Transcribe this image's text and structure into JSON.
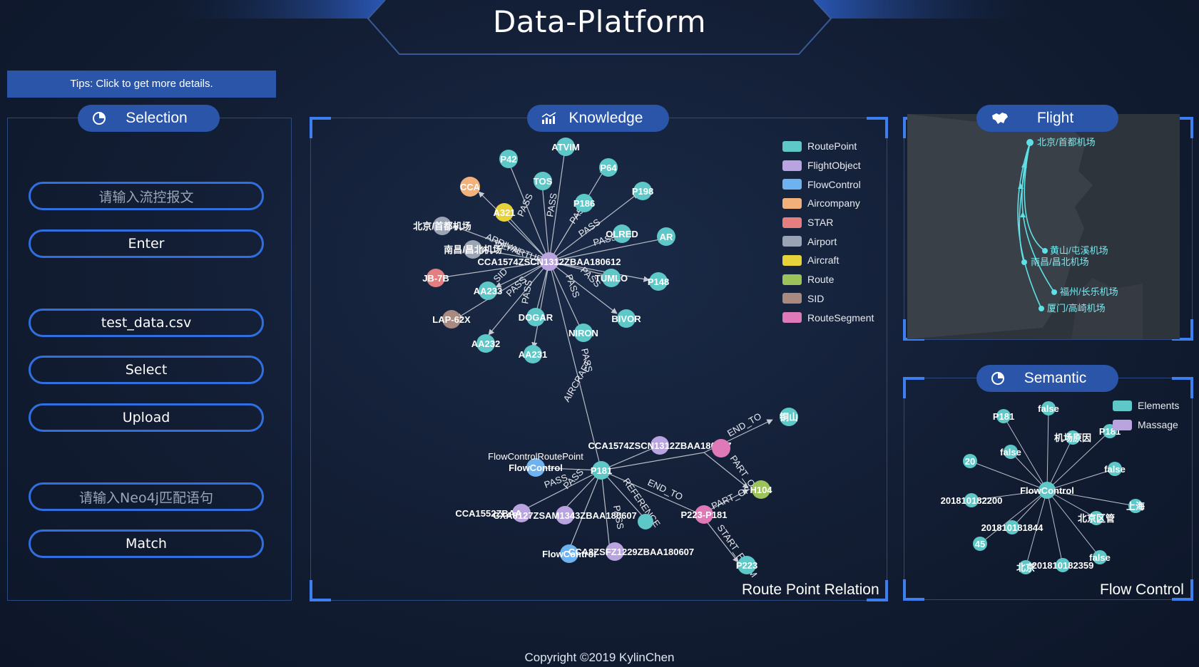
{
  "header": {
    "title": "Data-Platform"
  },
  "tips": "Tips: Click to get more details.",
  "selection": {
    "title": "Selection",
    "buttons": {
      "message_input": "请输入流控报文",
      "enter": "Enter",
      "file": "test_data.csv",
      "select": "Select",
      "upload": "Upload",
      "neo4j_input": "请输入Neo4j匹配语句",
      "match": "Match"
    }
  },
  "knowledge": {
    "title": "Knowledge",
    "caption": "Route Point Relation",
    "legend": [
      {
        "label": "RoutePoint",
        "color": "#5ec8c8"
      },
      {
        "label": "FlightObject",
        "color": "#b9a4e0"
      },
      {
        "label": "FlowControl",
        "color": "#6fb2f0"
      },
      {
        "label": "Aircompany",
        "color": "#f2b07a"
      },
      {
        "label": "STAR",
        "color": "#e57e7e"
      },
      {
        "label": "Airport",
        "color": "#9aa4b4"
      },
      {
        "label": "Aircraft",
        "color": "#e8d23a"
      },
      {
        "label": "Route",
        "color": "#9cc35a"
      },
      {
        "label": "SID",
        "color": "#a88a80"
      },
      {
        "label": "RouteSegment",
        "color": "#e079b8"
      }
    ],
    "nodes": {
      "center1": "CCA1574ZSCN1312ZBAA180612",
      "center2": "CCA1574ZSCN1312ZBAA180607",
      "p42": "P42",
      "atvim": "ATVIM",
      "p64": "P64",
      "tos": "TOS",
      "cca": "CCA",
      "a321": "A321",
      "p186": "P186",
      "p198": "P198",
      "olred": "OLRED",
      "ar": "AR",
      "p148": "P148",
      "tumlo": "TUMLO",
      "bivor": "BIVOR",
      "niron": "NIRON",
      "aa231": "AA231",
      "dogar": "DOGAR",
      "aa232": "AA232",
      "lap62x": "LAP-62X",
      "aa233": "AA233",
      "jb7b": "JB-7B",
      "pek": "北京/首都机场",
      "khn": "南昌/昌北机场",
      "p181": "P181",
      "fc1": "FlowControl",
      "fc1sub": "FlowControlRoutePoint",
      "fc2": "FlowControl",
      "c1552": "CCA1552ZBAA",
      "c127": "CXA8127ZSAM1343ZBAA180607",
      "c8": "CCA8ZSFZ1229ZBAA180607",
      "p223p181": "P223-P181",
      "h104": "H104",
      "p223": "P223",
      "tongshan": "铜山"
    },
    "edges": {
      "pass": "PASS",
      "end_to": "END_TO",
      "part_of": "PART_OF",
      "arrival": "ARRIVAL",
      "departure": "DEPARTURE",
      "sid": "SID",
      "start_from": "START_FROM",
      "ref": "REFERENCE",
      "aircraft": "AIRCRAFT"
    }
  },
  "flight": {
    "title": "Flight",
    "airports": [
      "北京/首都机场",
      "黄山/屯溪机场",
      "南昌/昌北机场",
      "福州/长乐机场",
      "厦门/高崎机场"
    ]
  },
  "semantic": {
    "title": "Semantic",
    "caption": "Flow Control",
    "legend": [
      {
        "label": "Elements",
        "color": "#5ec8c8"
      },
      {
        "label": "Massage",
        "color": "#b9a4e0"
      }
    ],
    "center": "FlowControl",
    "nodes": [
      "P181",
      "false",
      "P181",
      "机场原因",
      "20",
      "false",
      "false",
      "201810182200",
      "上海",
      "北京区管",
      "201810181844",
      "45",
      "false",
      "201810182359",
      "北京"
    ]
  },
  "footer": "Copyright ©2019 KylinChen"
}
